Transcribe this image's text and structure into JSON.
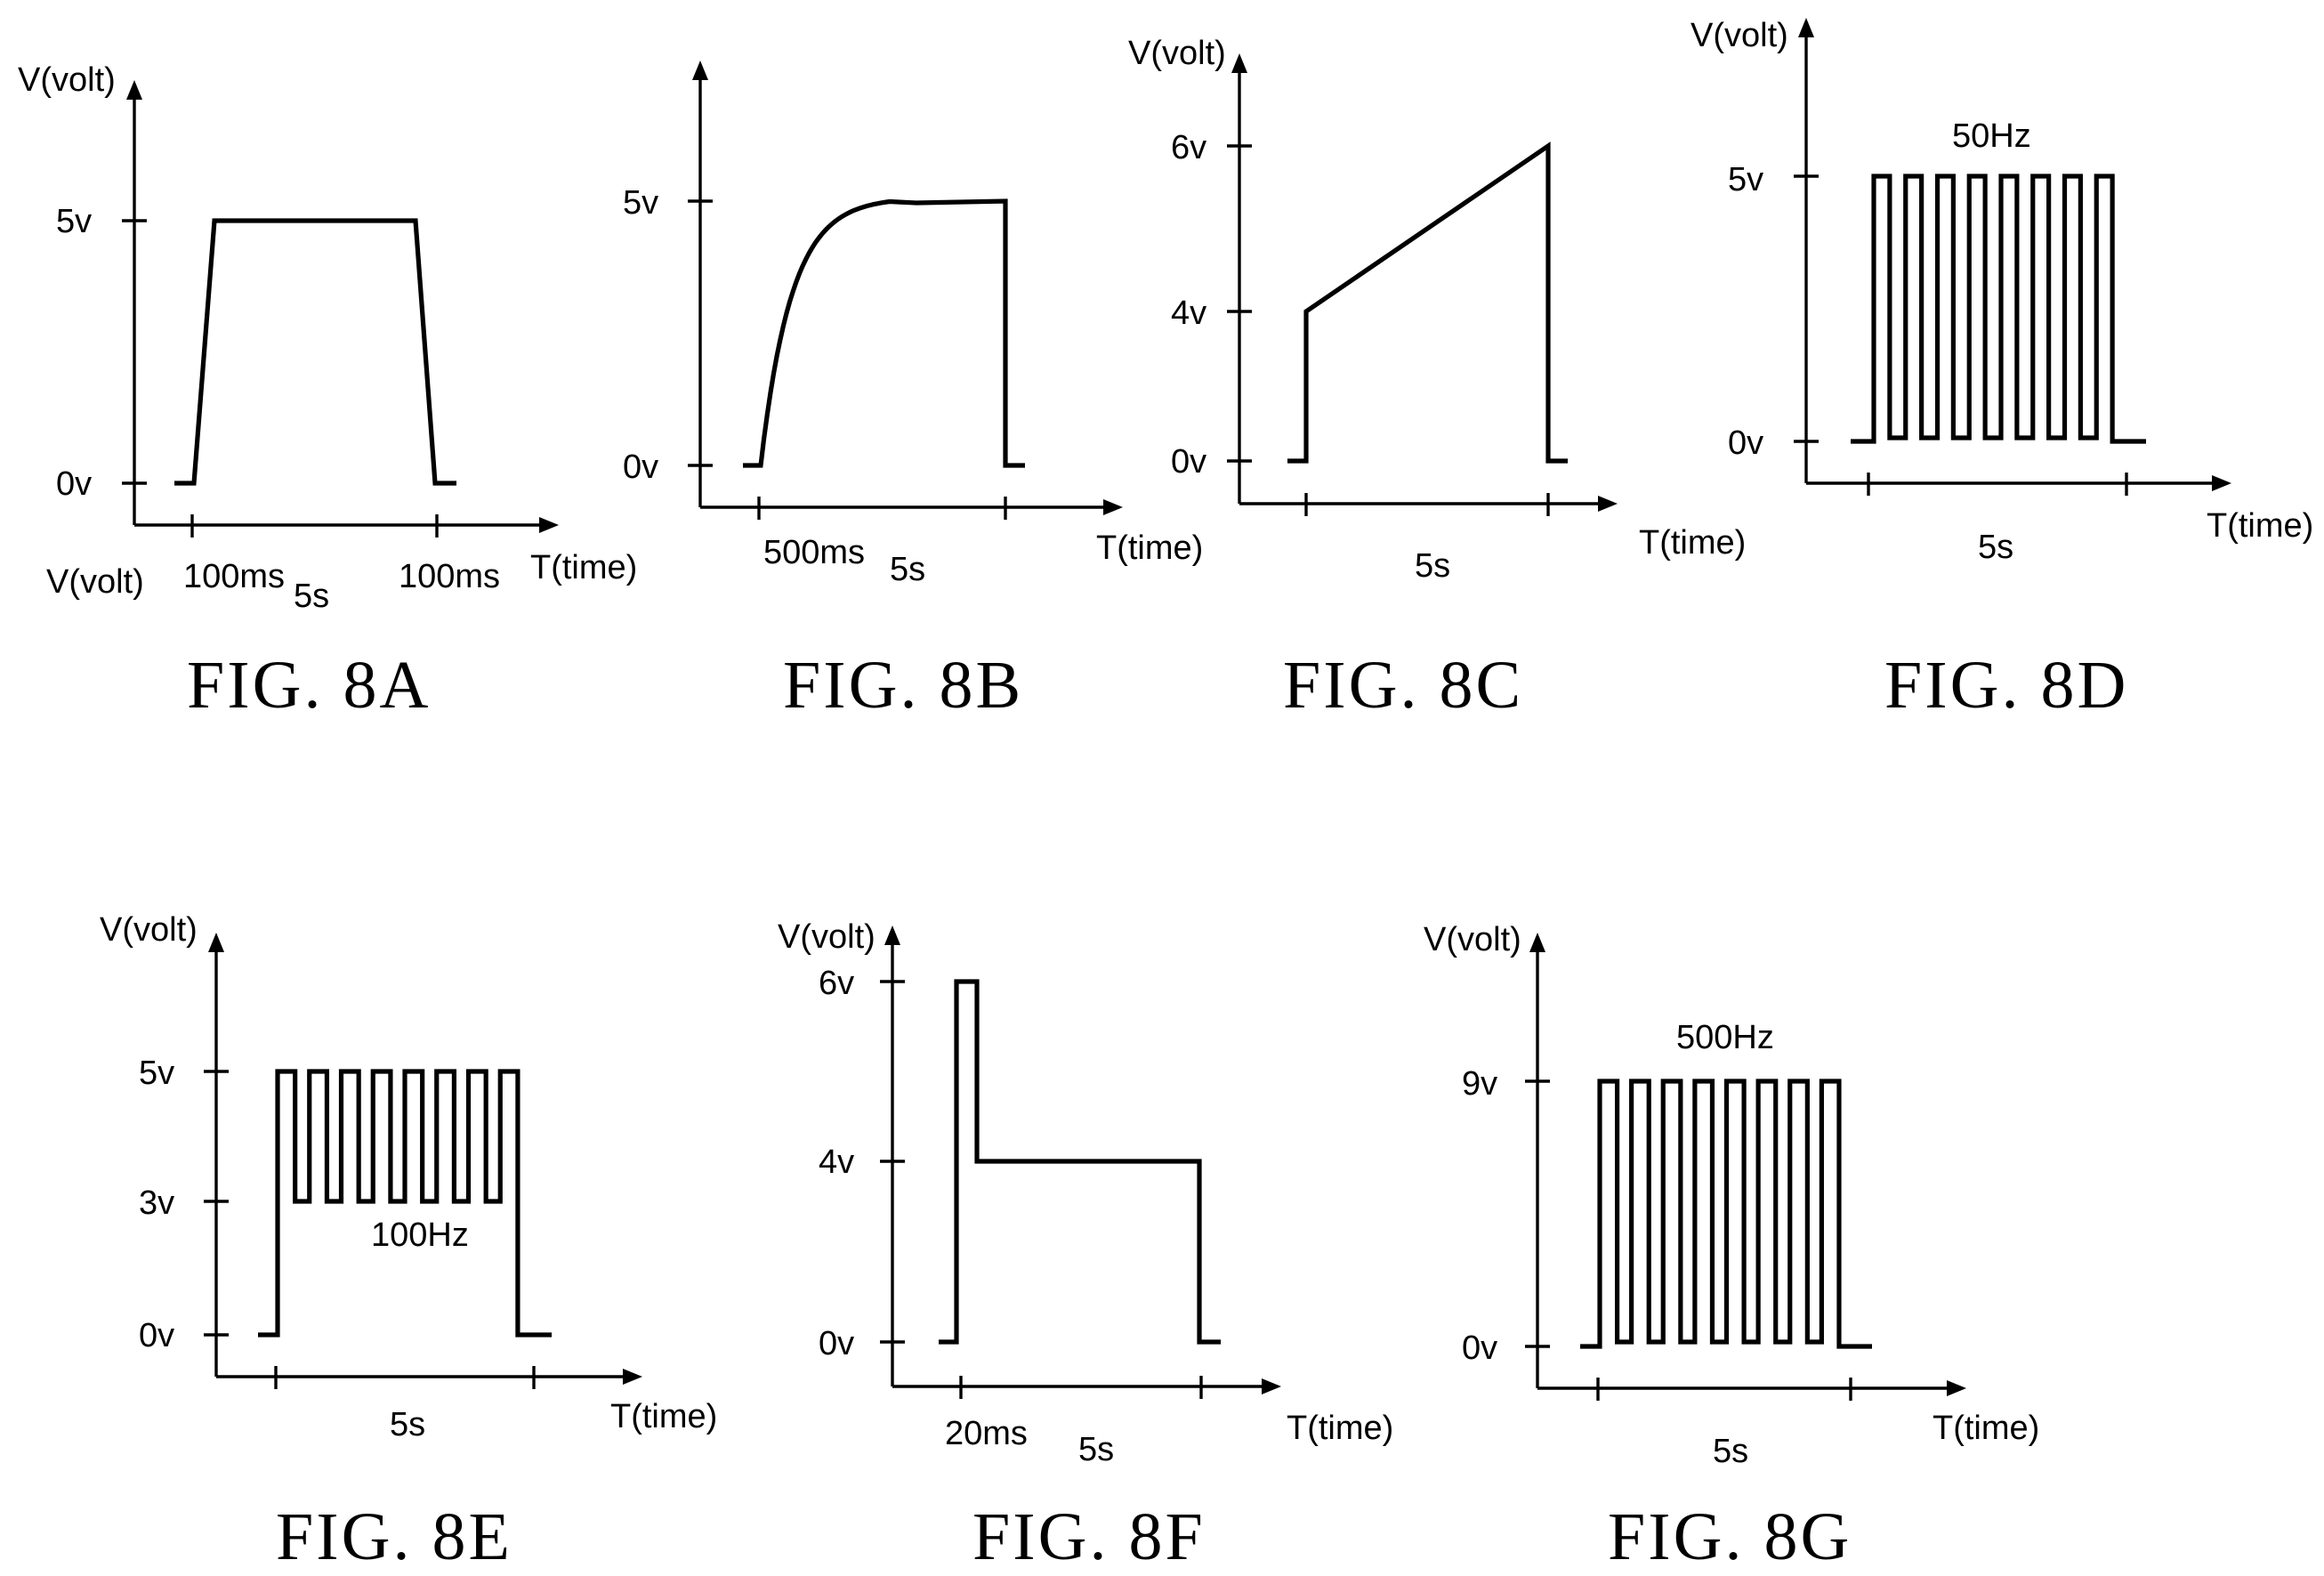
{
  "chart_data": [
    {
      "type": "line",
      "figure": "FIG. 8A",
      "ylabel": "V(volt)",
      "xlabel": "T(time)",
      "extra_label": "V(volt)",
      "yticks": [
        "5v",
        "0v"
      ],
      "time_labels": [
        "100ms",
        "5s",
        "100ms"
      ],
      "annotations": [],
      "series": [
        {
          "x": [
            "-",
            "0",
            "100ms",
            "5s",
            "5s+100ms",
            "-"
          ],
          "values": [
            0,
            0,
            5,
            5,
            0,
            0
          ]
        }
      ]
    },
    {
      "type": "line",
      "figure": "FIG. 8B",
      "ylabel": "",
      "xlabel": "T(time)",
      "yticks": [
        "5v",
        "0v"
      ],
      "time_labels": [
        "500ms",
        "5s"
      ],
      "annotations": [],
      "series": [
        {
          "shape": "exponential rise to 5v over 500ms, hold to 5s, drop to 0v",
          "values": [
            0,
            5,
            5,
            0
          ]
        }
      ]
    },
    {
      "type": "line",
      "figure": "FIG. 8C",
      "ylabel": "V(volt)",
      "xlabel": "T(time)",
      "yticks": [
        "6v",
        "4v",
        "0v"
      ],
      "time_labels": [
        "5s"
      ],
      "annotations": [],
      "series": [
        {
          "shape": "step to 4v, linear ramp to 6v over 5s, drop to 0v",
          "values": [
            0,
            4,
            6,
            0
          ]
        }
      ]
    },
    {
      "type": "line",
      "figure": "FIG. 8D",
      "ylabel": "V(volt)",
      "xlabel": "T(time)",
      "yticks": [
        "5v",
        "0v"
      ],
      "time_labels": [
        "5s"
      ],
      "annotations": [
        "50Hz"
      ],
      "series": [
        {
          "shape": "square wave between 0v and 5v, 8 pulses",
          "high": 5,
          "low": 0,
          "pulses": 8
        }
      ]
    },
    {
      "type": "line",
      "figure": "FIG. 8E",
      "ylabel": "V(volt)",
      "xlabel": "T(time)",
      "yticks": [
        "5v",
        "3v",
        "0v"
      ],
      "time_labels": [
        "5s"
      ],
      "annotations": [
        "100Hz"
      ],
      "series": [
        {
          "shape": "square wave between 3v and 5v, 8 pulses",
          "high": 5,
          "low": 3,
          "pulses": 8
        }
      ]
    },
    {
      "type": "line",
      "figure": "FIG. 8F",
      "ylabel": "V(volt)",
      "xlabel": "T(time)",
      "yticks": [
        "6v",
        "4v",
        "0v"
      ],
      "time_labels": [
        "20ms",
        "5s"
      ],
      "annotations": [],
      "series": [
        {
          "shape": "6v pulse for 20ms then 4v until 5s, then 0v",
          "values": [
            0,
            6,
            4,
            0
          ]
        }
      ]
    },
    {
      "type": "line",
      "figure": "FIG. 8G",
      "ylabel": "V(volt)",
      "xlabel": "T(time)",
      "yticks": [
        "9v",
        "0v"
      ],
      "time_labels": [
        "5s"
      ],
      "annotations": [
        "500Hz"
      ],
      "series": [
        {
          "shape": "square wave between 0v and 9v, 8 pulses",
          "high": 9,
          "low": 0,
          "pulses": 8
        }
      ]
    }
  ]
}
